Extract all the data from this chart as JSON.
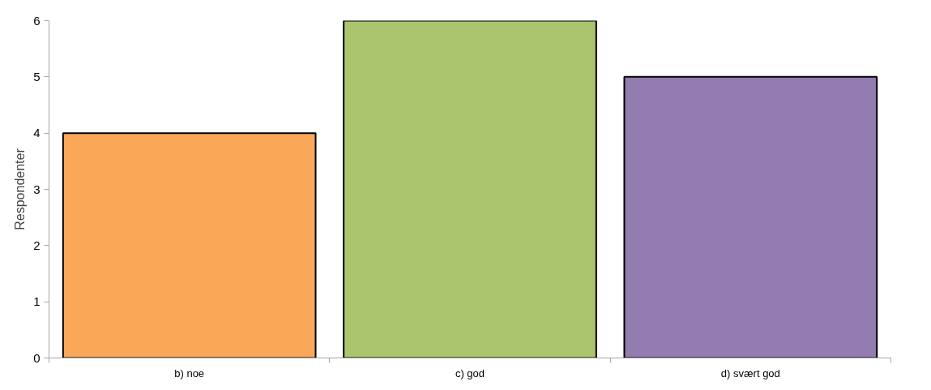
{
  "chart_data": {
    "type": "bar",
    "ylabel": "Respondenter",
    "categories": [
      "b) noe",
      "c) god",
      "d) svært god"
    ],
    "values": [
      4,
      6,
      5
    ],
    "colors": [
      "#f9a857",
      "#abc56f",
      "#937cb0"
    ],
    "ylim": [
      0,
      6
    ],
    "yticks": [
      0,
      1,
      2,
      3,
      4,
      5,
      6
    ],
    "grid": false
  }
}
